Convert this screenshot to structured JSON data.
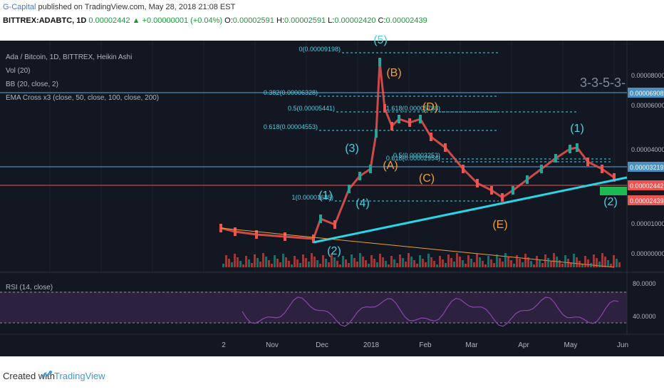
{
  "header": {
    "author": "G-Capital",
    "published": " published on TradingView.com, May 28, 2018 21:08 EST",
    "symbol": "BITTREX:ADABTC, 1D",
    "last": "0.00002442",
    "change": "+0.00000001 (+0.04%)",
    "o_label": "O:",
    "o": "0.00002591",
    "h_label": "H:",
    "h": "0.00002591",
    "l_label": "L:",
    "l": "0.00002420",
    "c_label": "C:",
    "c": "0.00002439"
  },
  "legend": {
    "line1": "Ada / Bitcoin, 1D, BITTREX, Heikin Ashi",
    "line2": "Vol (20)",
    "line3": "BB (20, close, 2)",
    "line4": "EMA Cross x3 (close, 50, close, 100, close, 200)"
  },
  "rsi_label": "RSI (14, close)",
  "footer": {
    "created": "Created with",
    "brand": "TradingView"
  },
  "colors": {
    "bg": "#131722",
    "up": "#26a69a",
    "down": "#ef5350",
    "cyan": "#4dd0e1",
    "orange": "#f0a030",
    "rsi": "#8e44ad"
  },
  "chart_data": {
    "type": "line",
    "price_axis": [
      "0.00008000",
      "0.00006000",
      "0.00004000",
      "0.00001000",
      "0.00000000"
    ],
    "price_markers": [
      {
        "value": "0.00006908",
        "color": "#4a90c0"
      },
      {
        "value": "0.00003219",
        "color": "#4a90c0"
      },
      {
        "value": "0.00002442",
        "color": "#ef5350"
      },
      {
        "value": "0.00002439",
        "color": "#ef5350"
      }
    ],
    "rsi_axis": [
      "80.0000",
      "40.0000"
    ],
    "time_axis": [
      "2",
      "Nov",
      "Dec",
      "2018",
      "Feb",
      "Mar",
      "Apr",
      "May",
      "Jun"
    ],
    "fib_levels": [
      {
        "label": "0(0.00009198)"
      },
      {
        "label": "0.382(0.00006328)"
      },
      {
        "label": "0.5(0.00005441)"
      },
      {
        "label": "0.618(0.00004553)"
      },
      {
        "label": "1(0.00001685)"
      },
      {
        "label": "1.618(0.00005788)"
      },
      {
        "label": "0.5(0.00003253)"
      },
      {
        "label": "0.618(0.00002954)"
      }
    ],
    "wave_labels": {
      "cyan": [
        "(1)",
        "(2)",
        "(3)",
        "(4)",
        "(5)",
        "(1)",
        "(2)"
      ],
      "orange": [
        "(A)",
        "(B)",
        "(C)",
        "(D)",
        "(E)"
      ]
    },
    "pattern_label": "3-3-5-3-"
  }
}
